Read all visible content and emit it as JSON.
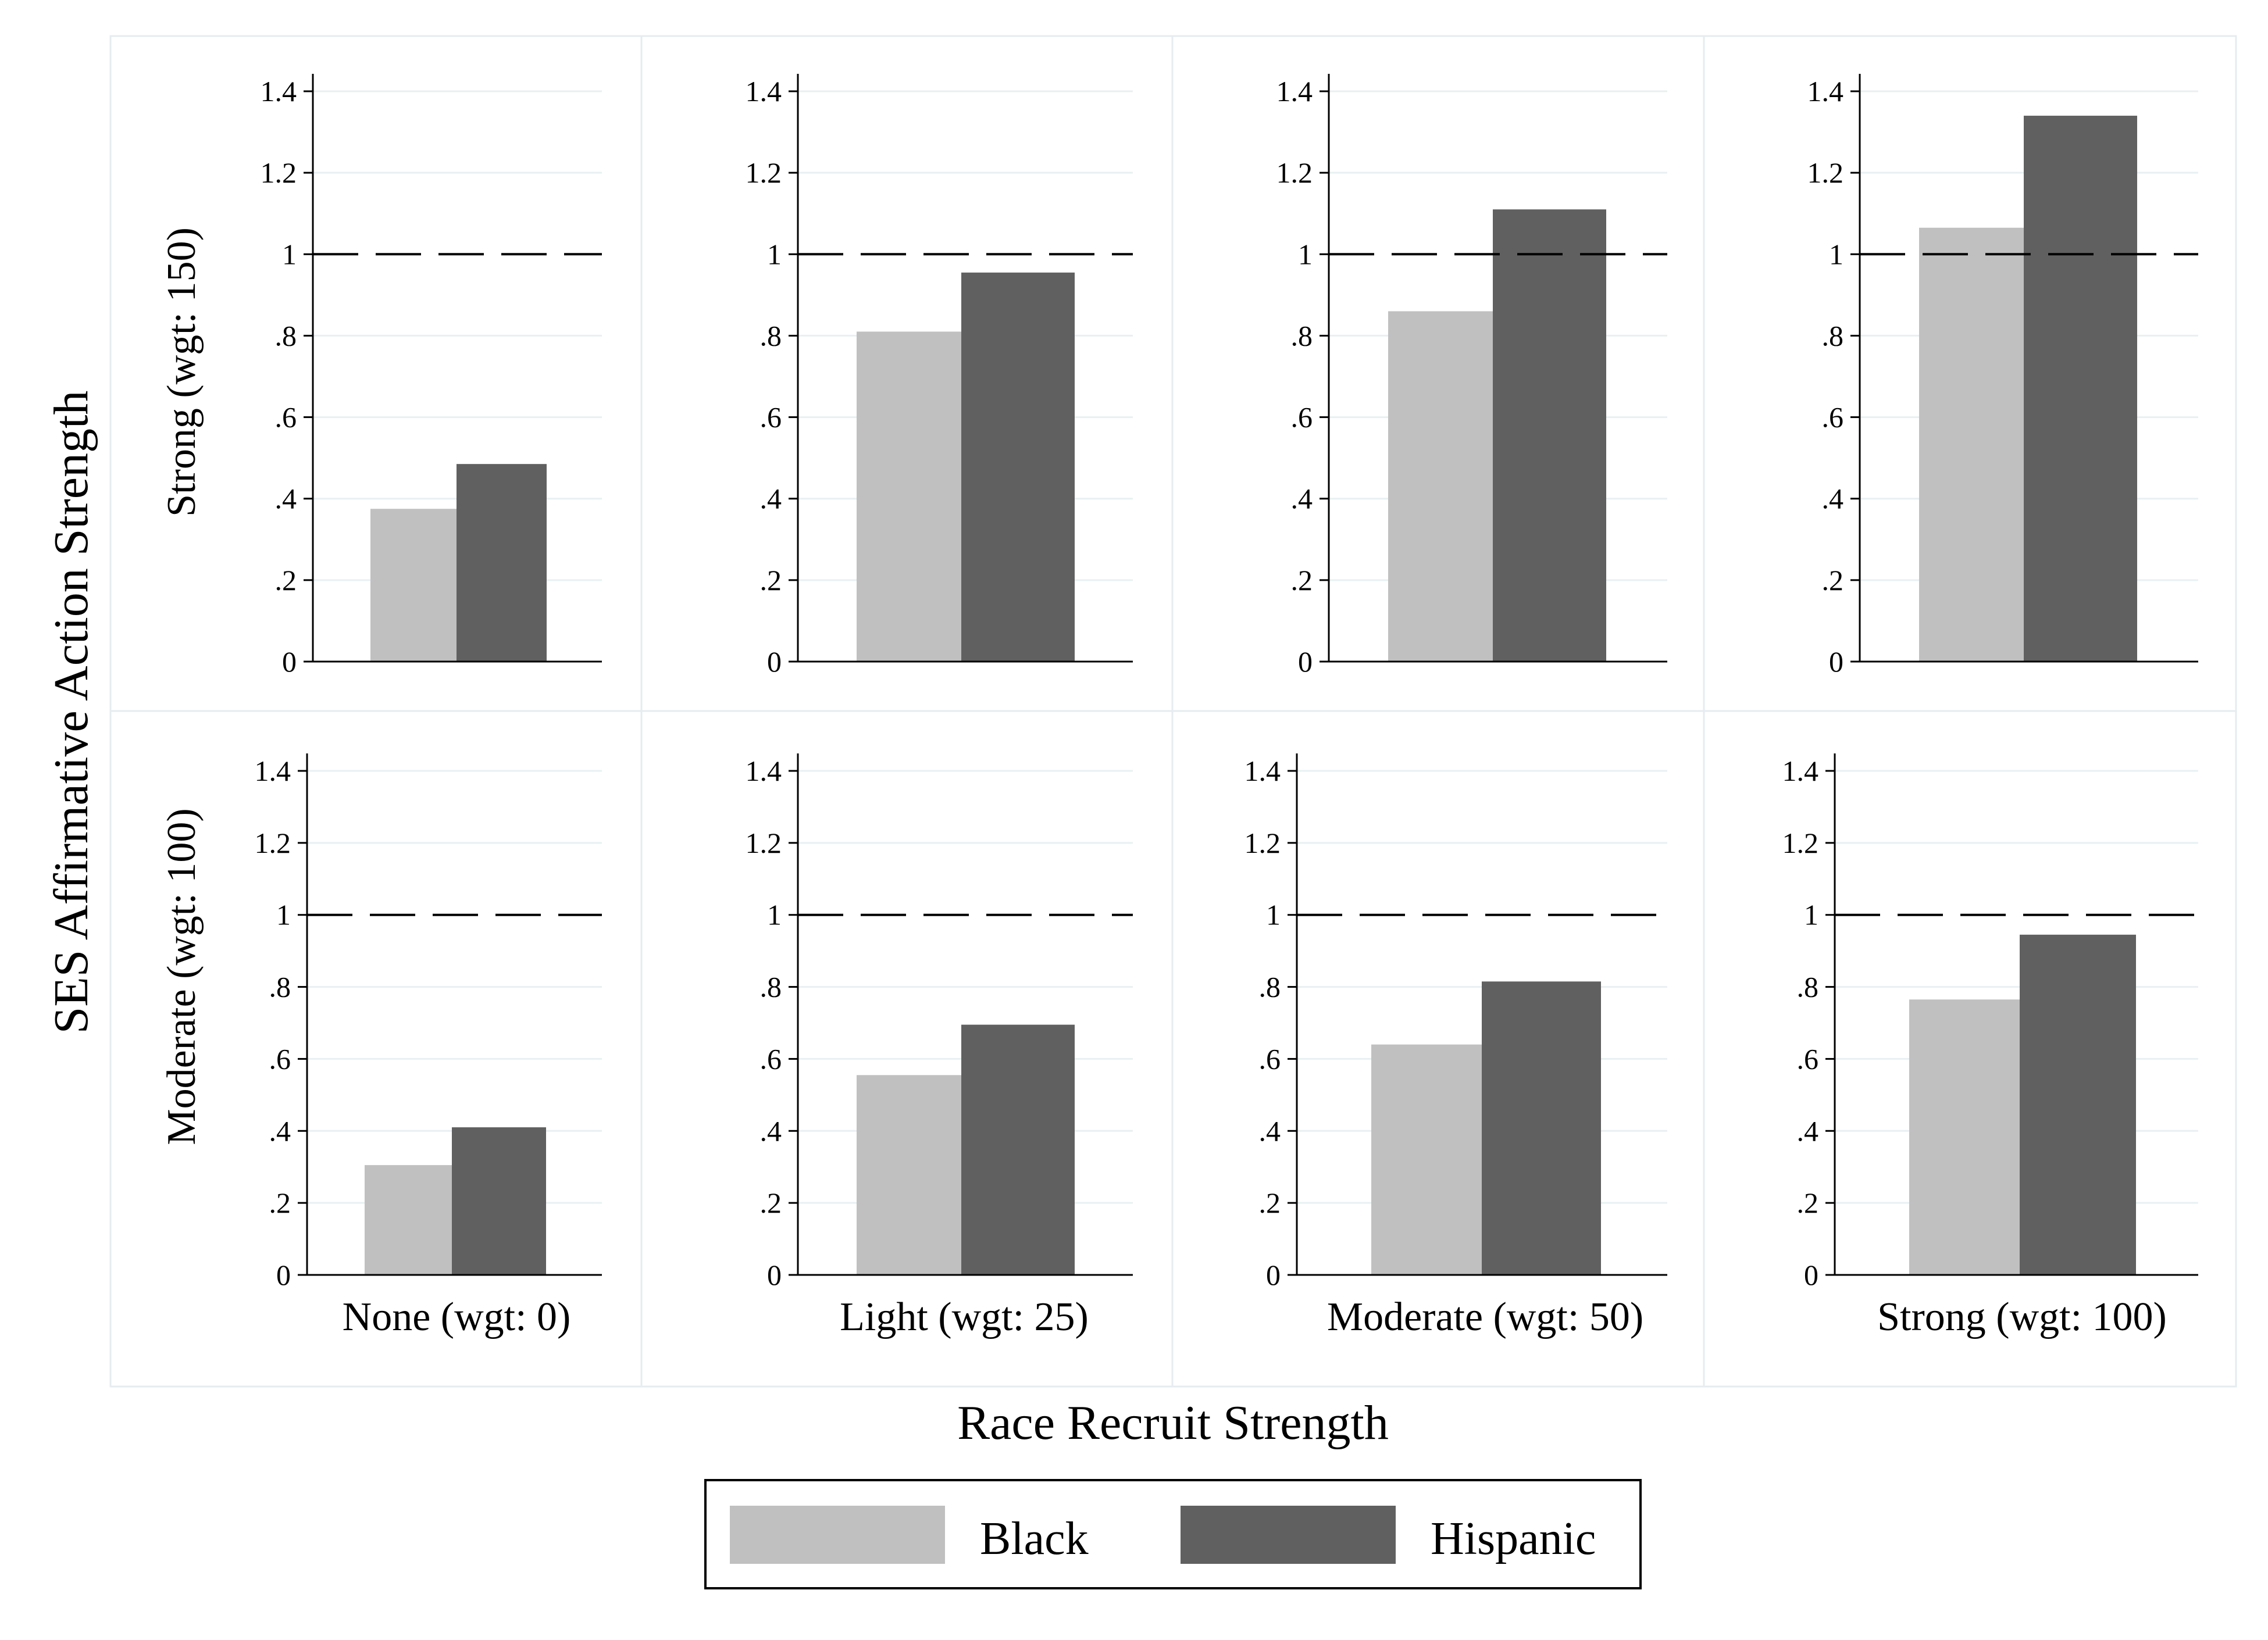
{
  "chart_data": {
    "type": "bar",
    "y_axis_title": "SES Affirmative Action Strength",
    "x_axis_title": "Race Recruit Strength",
    "columns": [
      "None (wgt: 0)",
      "Light (wgt: 25)",
      "Moderate (wgt: 50)",
      "Strong (wgt: 100)"
    ],
    "rows": [
      "Strong (wgt: 150)",
      "Moderate (wgt: 100)"
    ],
    "ylim": [
      0,
      1.4
    ],
    "yticks": [
      0,
      0.2,
      0.4,
      0.6,
      0.8,
      1,
      1.2,
      1.4
    ],
    "ytick_labels": [
      "0",
      ".2",
      ".4",
      ".6",
      ".8",
      "1",
      "1.2",
      "1.4"
    ],
    "reference_line": 1,
    "grid": true,
    "legend_position": "bottom",
    "series": [
      {
        "name": "Black",
        "color": "#c0c0c0"
      },
      {
        "name": "Hispanic",
        "color": "#606060"
      }
    ],
    "panels": [
      {
        "row": 0,
        "col": 0,
        "values": [
          0.375,
          0.485
        ]
      },
      {
        "row": 0,
        "col": 1,
        "values": [
          0.81,
          0.955
        ]
      },
      {
        "row": 0,
        "col": 2,
        "values": [
          0.86,
          1.11
        ]
      },
      {
        "row": 0,
        "col": 3,
        "values": [
          1.065,
          1.34
        ]
      },
      {
        "row": 1,
        "col": 0,
        "values": [
          0.305,
          0.41
        ]
      },
      {
        "row": 1,
        "col": 1,
        "values": [
          0.555,
          0.695
        ]
      },
      {
        "row": 1,
        "col": 2,
        "values": [
          0.64,
          0.815
        ]
      },
      {
        "row": 1,
        "col": 3,
        "values": [
          0.765,
          0.945
        ]
      }
    ]
  }
}
